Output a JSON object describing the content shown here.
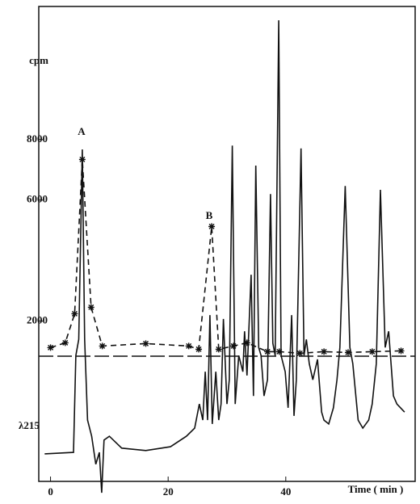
{
  "chart_data": {
    "type": "line",
    "ylabel": "cpm",
    "y2label": "λ215",
    "xlabel": "Time ( min )",
    "annotations": [
      "A",
      "B"
    ],
    "xlim": [
      -2,
      62
    ],
    "xticks": [
      0,
      20,
      40
    ],
    "ylim": [
      -3300,
      12400
    ],
    "yticks": [
      2000,
      6000,
      8000
    ],
    "y2lim": [
      0,
      100
    ],
    "series": [
      {
        "color": "#111111",
        "linestyle": "dashed",
        "marker": "asterisk",
        "x": [
          0,
          2.5,
          4.1,
          5.4,
          6.9,
          8.8,
          16.2,
          23.5,
          25.2,
          27.4,
          28.6,
          31.1,
          33.4,
          36.9,
          38.9,
          42.4,
          46.5,
          50.6,
          54.7,
          59.6
        ],
        "values": [
          1121,
          1282,
          2243,
          7343,
          2457,
          1175,
          1255,
          1175,
          1068,
          5127,
          1068,
          1175,
          1282,
          988,
          988,
          935,
          988,
          961,
          988,
          1015
        ]
      },
      {
        "color": "#111111",
        "linestyle": "solid",
        "axis": "y2",
        "x": [
          -1.0,
          3.9,
          4.3,
          4.8,
          5.4,
          5.8,
          6.3,
          7.0,
          7.7,
          8.3,
          8.7,
          9.1,
          10.0,
          12.1,
          16.2,
          20.4,
          23.1,
          24.5,
          25.3,
          25.9,
          26.3,
          26.7,
          27.1,
          27.5,
          28.1,
          28.6,
          29.0,
          29.4,
          30.0,
          30.4,
          30.9,
          31.4,
          32.0,
          32.7,
          33.0,
          33.4,
          34.1,
          34.5,
          34.9,
          35.4,
          35.8,
          36.3,
          36.9,
          37.4,
          37.8,
          38.2,
          38.8,
          39.2,
          39.9,
          40.4,
          41.0,
          41.4,
          41.8,
          42.6,
          43.1,
          43.5,
          44.0,
          44.6,
          45.4,
          46.1,
          46.5,
          47.3,
          48.1,
          48.7,
          49.2,
          50.1,
          50.9,
          51.4,
          52.3,
          53.1,
          54.1,
          54.7,
          55.4,
          56.1,
          56.9,
          57.5,
          58.3,
          58.9,
          60.2
        ],
        "values": [
          5.8,
          6.1,
          26.5,
          29.9,
          69.9,
          29.9,
          12.9,
          9.5,
          3.6,
          6.1,
          -2.4,
          8.7,
          9.5,
          7.0,
          6.5,
          7.3,
          9.5,
          11.2,
          16.3,
          12.9,
          23.1,
          12.9,
          35.0,
          12.1,
          23.1,
          12.9,
          16.3,
          34.2,
          16.3,
          21.4,
          70.7,
          16.3,
          26.5,
          23.1,
          31.6,
          22.3,
          43.5,
          18.0,
          66.5,
          28.2,
          26.5,
          18.0,
          21.4,
          60.5,
          29.1,
          26.5,
          97.1,
          26.5,
          23.1,
          15.5,
          35.0,
          13.8,
          21.4,
          70.1,
          26.5,
          29.9,
          24.8,
          21.4,
          25.7,
          14.6,
          12.9,
          12.1,
          15.5,
          21.4,
          28.2,
          62.2,
          28.2,
          24.8,
          12.9,
          11.2,
          12.9,
          16.3,
          24.8,
          61.4,
          28.2,
          31.6,
          18.0,
          16.3,
          14.6
        ]
      }
    ]
  }
}
